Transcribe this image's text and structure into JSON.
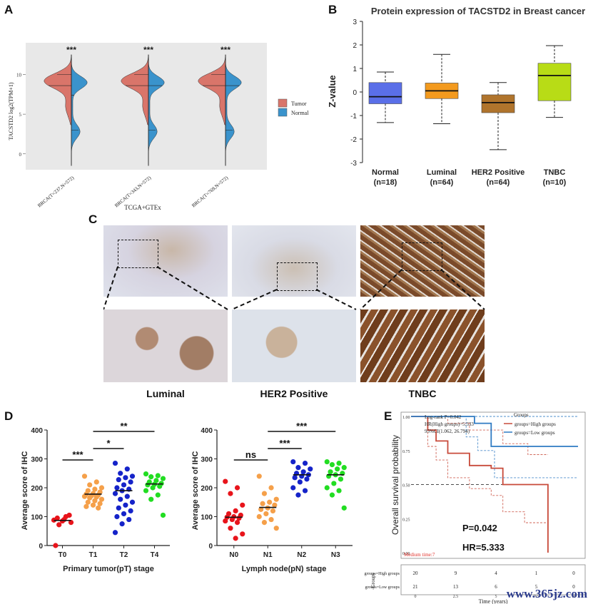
{
  "panels": {
    "a": "A",
    "b": "B",
    "c": "C",
    "d": "D",
    "e": "E"
  },
  "watermark": "www.365jz.com",
  "ihc_captions": [
    "Luminal",
    "HER2 Positive",
    "TNBC"
  ],
  "chart_data": [
    {
      "id": "A",
      "type": "violin",
      "ylabel": "TACSTD2 log2(TPM+1)",
      "xlabel": "TCGA+GTEx",
      "yticks": [
        0,
        5,
        10
      ],
      "ylim": [
        -2,
        14
      ],
      "categories": [
        "BRCA(T=237,N=572)",
        "BRCA(T=343,N=572)",
        "BRCA(T=769,N=572)"
      ],
      "significance": [
        "***",
        "***",
        "***"
      ],
      "series": [
        {
          "name": "Tumor",
          "color": "#d9756a",
          "medians": [
            8.6,
            8.6,
            8.6
          ]
        },
        {
          "name": "Normal",
          "color": "#3a93cc",
          "medians": [
            7.4,
            8.6,
            8.6
          ]
        }
      ],
      "legend_position": "right"
    },
    {
      "id": "B",
      "type": "box",
      "title": "Protein expression of TACSTD2 in Breast cancer",
      "ylabel": "Z-value",
      "ylim": [
        -3,
        3
      ],
      "yticks": [
        -3,
        -2,
        -1,
        0,
        1,
        2,
        3
      ],
      "categories": [
        "Normal",
        "Luminal",
        "HER2 Positive",
        "TNBC"
      ],
      "sublabels": [
        "(n=18)",
        "(n=64)",
        "(n=64)",
        "(n=10)"
      ],
      "colors": [
        "#5a6fe8",
        "#f39a1e",
        "#b0742c",
        "#b8dc16"
      ],
      "boxes": [
        {
          "whisker_low": -1.3,
          "q1": -0.5,
          "median": -0.2,
          "q3": 0.4,
          "whisker_high": 0.85
        },
        {
          "whisker_low": -1.35,
          "q1": -0.28,
          "median": 0.05,
          "q3": 0.38,
          "whisker_high": 1.6
        },
        {
          "whisker_low": -2.45,
          "q1": -0.88,
          "median": -0.45,
          "q3": -0.12,
          "whisker_high": 0.4
        },
        {
          "whisker_low": -1.08,
          "q1": -0.37,
          "median": 0.7,
          "q3": 1.22,
          "whisker_high": 1.97
        }
      ]
    },
    {
      "id": "D1",
      "type": "scatter",
      "ylabel": "Average score of IHC",
      "xlabel": "Primary tumor(pT) stage",
      "ylim": [
        0,
        400
      ],
      "yticks": [
        0,
        100,
        200,
        300,
        400
      ],
      "categories": [
        "T0",
        "T1",
        "T2",
        "T4"
      ],
      "colors": [
        "#e8141b",
        "#f5a04a",
        "#1523c9",
        "#22dd22"
      ],
      "means": [
        87,
        178,
        190,
        213
      ],
      "points": [
        [
          88,
          100,
          72,
          80,
          90,
          95,
          105,
          85,
          0
        ],
        [
          240,
          220,
          210,
          200,
          195,
          190,
          185,
          180,
          178,
          175,
          172,
          170,
          168,
          165,
          160,
          155,
          150,
          145,
          140,
          135,
          130
        ],
        [
          285,
          265,
          250,
          240,
          235,
          228,
          220,
          210,
          200,
          195,
          190,
          180,
          170,
          160,
          150,
          140,
          130,
          120,
          110,
          100,
          90,
          75,
          45
        ],
        [
          248,
          242,
          238,
          232,
          225,
          220,
          215,
          212,
          210,
          205,
          200,
          190,
          175,
          160,
          105
        ]
      ],
      "comparisons": [
        {
          "from": "T0",
          "to": "T1",
          "label": "***"
        },
        {
          "from": "T1",
          "to": "T2",
          "label": "*"
        },
        {
          "from": "T1",
          "to": "T4",
          "label": "**"
        }
      ]
    },
    {
      "id": "D2",
      "type": "scatter",
      "ylabel": "Average score of IHC",
      "xlabel": "Lymph node(pN) stage",
      "ylim": [
        0,
        400
      ],
      "yticks": [
        0,
        100,
        200,
        300,
        400
      ],
      "categories": [
        "N0",
        "N1",
        "N2",
        "N3"
      ],
      "colors": [
        "#e8141b",
        "#f5a04a",
        "#1523c9",
        "#22dd22"
      ],
      "means": [
        98,
        132,
        245,
        245
      ],
      "points": [
        [
          222,
          200,
          180,
          140,
          120,
          110,
          105,
          100,
          98,
          95,
          90,
          85,
          80,
          60,
          40,
          25
        ],
        [
          240,
          200,
          180,
          160,
          150,
          145,
          140,
          130,
          125,
          120,
          110,
          100,
          90,
          80,
          60
        ],
        [
          290,
          285,
          270,
          265,
          255,
          250,
          245,
          240,
          235,
          230,
          220,
          200,
          190,
          175
        ],
        [
          290,
          285,
          280,
          270,
          265,
          255,
          250,
          245,
          240,
          230,
          215,
          200,
          190,
          175,
          130
        ]
      ],
      "comparisons": [
        {
          "from": "N0",
          "to": "N1",
          "label": "ns"
        },
        {
          "from": "N1",
          "to": "N2",
          "label": "***"
        },
        {
          "from": "N1",
          "to": "N3",
          "label": "***"
        }
      ]
    },
    {
      "id": "E",
      "type": "line",
      "subtype": "kaplan-meier",
      "ylabel": "Overall survival probability",
      "xlabel": "Time (years)",
      "xlim": [
        0,
        10
      ],
      "ylim": [
        0,
        1
      ],
      "yticks": [
        "0.00",
        "0.25",
        "0.50",
        "0.75",
        "1.00"
      ],
      "xticks": [
        "0",
        "2.5",
        "5",
        "7.5",
        "10"
      ],
      "legend_title": "Groups",
      "legend_position": "top-right",
      "annotation_lines": [
        "Log-rank P=0.042",
        "HR(High groups)=5.333",
        "95%CI(1.062, 26.794)"
      ],
      "p_text": "P=0.042",
      "hr_text": "HR=5.333",
      "median_text": "Medium time:7",
      "series": [
        {
          "name": "groups=High groups",
          "color": "#c84a3a",
          "steps": [
            [
              0,
              1.0
            ],
            [
              1.0,
              1.0
            ],
            [
              1.0,
              0.9
            ],
            [
              1.5,
              0.9
            ],
            [
              1.5,
              0.82
            ],
            [
              2.2,
              0.82
            ],
            [
              2.2,
              0.73
            ],
            [
              3.5,
              0.73
            ],
            [
              3.5,
              0.64
            ],
            [
              4.8,
              0.64
            ],
            [
              4.8,
              0.62
            ],
            [
              5.5,
              0.62
            ],
            [
              5.5,
              0.5
            ],
            [
              8.2,
              0.5
            ],
            [
              8.2,
              0.0
            ]
          ],
          "ci_upper": [
            [
              0,
              1.0
            ],
            [
              1.0,
              1.0
            ],
            [
              1.0,
              1.0
            ],
            [
              2.2,
              1.0
            ],
            [
              2.2,
              0.95
            ],
            [
              3.5,
              0.95
            ],
            [
              3.5,
              0.9
            ],
            [
              5.5,
              0.9
            ],
            [
              5.5,
              0.8
            ],
            [
              7.0,
              0.8
            ],
            [
              7.0,
              0.72
            ],
            [
              8.2,
              0.72
            ]
          ],
          "ci_lower": [
            [
              0,
              1.0
            ],
            [
              1.0,
              1.0
            ],
            [
              1.0,
              0.78
            ],
            [
              1.5,
              0.78
            ],
            [
              1.5,
              0.68
            ],
            [
              2.2,
              0.68
            ],
            [
              2.2,
              0.55
            ],
            [
              3.5,
              0.55
            ],
            [
              3.5,
              0.47
            ],
            [
              4.8,
              0.47
            ],
            [
              4.8,
              0.42
            ],
            [
              5.5,
              0.42
            ],
            [
              5.5,
              0.3
            ],
            [
              6.8,
              0.3
            ],
            [
              6.8,
              0.22
            ],
            [
              8.2,
              0.22
            ]
          ],
          "at_risk": [
            20,
            9,
            4,
            1,
            0
          ]
        },
        {
          "name": "groups=Low groups",
          "color": "#2f7bc3",
          "steps": [
            [
              0,
              1.0
            ],
            [
              3.8,
              1.0
            ],
            [
              3.8,
              0.95
            ],
            [
              4.8,
              0.95
            ],
            [
              4.8,
              0.78
            ],
            [
              10,
              0.78
            ]
          ],
          "ci_upper": [
            [
              0,
              1.0
            ],
            [
              10,
              1.0
            ]
          ],
          "ci_lower": [
            [
              0,
              1.0
            ],
            [
              3.3,
              1.0
            ],
            [
              3.3,
              0.85
            ],
            [
              4.0,
              0.85
            ],
            [
              4.0,
              0.75
            ],
            [
              5.0,
              0.75
            ],
            [
              5.0,
              0.55
            ],
            [
              10,
              0.55
            ]
          ],
          "at_risk": [
            21,
            13,
            6,
            5,
            0
          ]
        }
      ],
      "risk_table_title": "Groups",
      "risk_table_rows": [
        "groups=High groups",
        "groups=Low groups"
      ]
    }
  ]
}
